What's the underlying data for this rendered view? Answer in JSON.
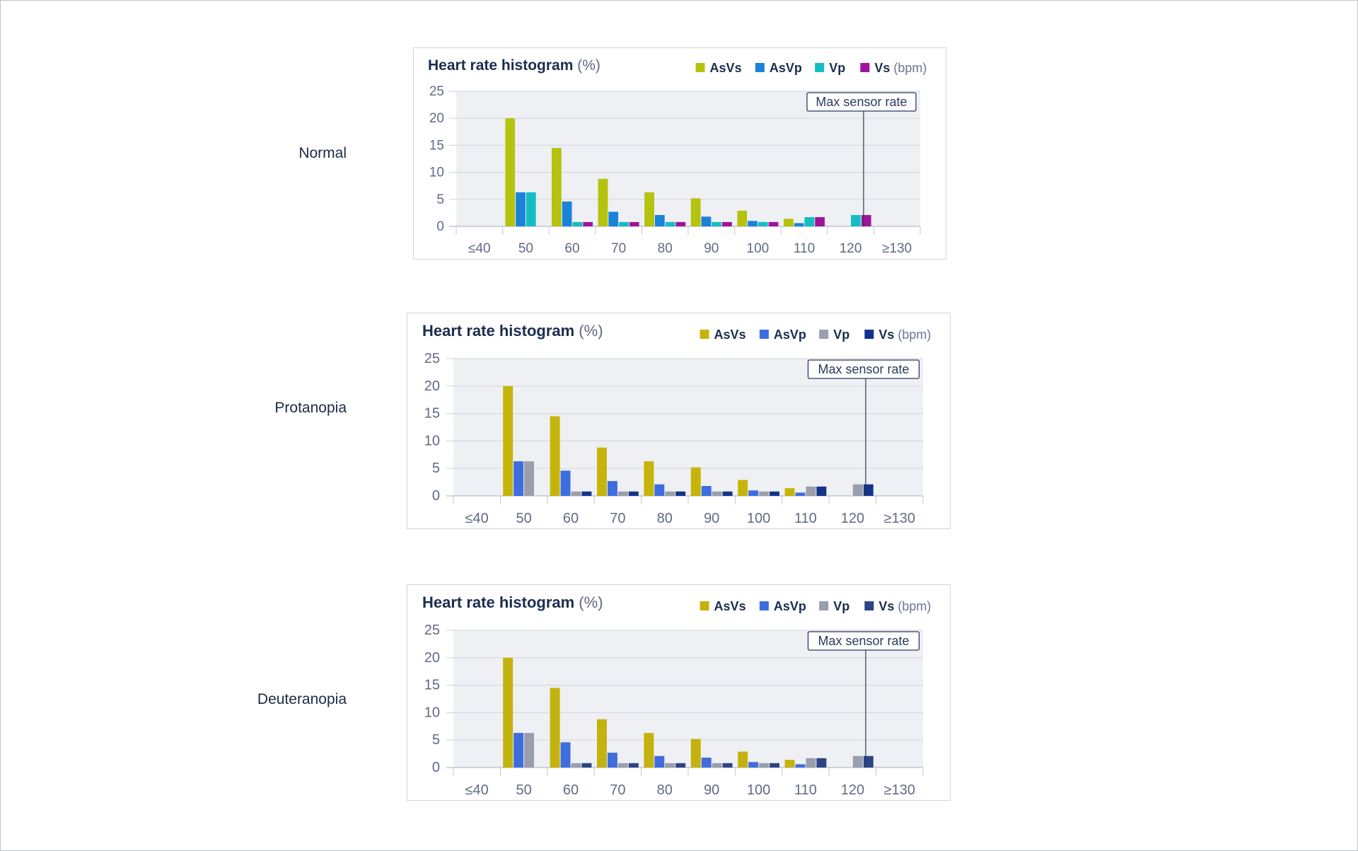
{
  "labels": [
    "Normal",
    "Protanopia",
    "Deuteranopia"
  ],
  "chart_data": [
    {
      "type": "bar",
      "title": "Heart rate histogram",
      "title_unit": "(%)",
      "categories": [
        "≤40",
        "50",
        "60",
        "70",
        "80",
        "90",
        "100",
        "110",
        "120",
        "≥130"
      ],
      "ylim": [
        0,
        25
      ],
      "yticks": [
        "0",
        "5",
        "10",
        "15",
        "20",
        "25"
      ],
      "grid": true,
      "legend_position": "top-right",
      "legend_suffix": "(bpm)",
      "annotation": {
        "text": "Max sensor rate",
        "x_category": "120"
      },
      "series": [
        {
          "name": "AsVs",
          "color": "#b5c20e",
          "values": [
            0,
            20,
            14.5,
            8.8,
            6.3,
            5.2,
            2.9,
            1.4,
            0,
            null
          ]
        },
        {
          "name": "AsVp",
          "color": "#1a83d9",
          "values": [
            null,
            6.3,
            4.6,
            2.7,
            2.1,
            1.8,
            1.0,
            0.6,
            null,
            null
          ]
        },
        {
          "name": "Vp",
          "color": "#13bdc2",
          "values": [
            null,
            6.3,
            0.8,
            0.8,
            0.8,
            0.8,
            0.8,
            1.7,
            2.1,
            null
          ]
        },
        {
          "name": "Vs",
          "color": "#a0149a",
          "values": [
            null,
            null,
            0.8,
            0.8,
            0.8,
            0.8,
            0.8,
            1.7,
            2.1,
            null
          ]
        }
      ]
    },
    {
      "type": "bar",
      "title": "Heart rate histogram",
      "title_unit": "(%)",
      "categories": [
        "≤40",
        "50",
        "60",
        "70",
        "80",
        "90",
        "100",
        "110",
        "120",
        "≥130"
      ],
      "ylim": [
        0,
        25
      ],
      "yticks": [
        "0",
        "5",
        "10",
        "15",
        "20",
        "25"
      ],
      "grid": true,
      "legend_position": "top-right",
      "legend_suffix": "(bpm)",
      "annotation": {
        "text": "Max sensor rate",
        "x_category": "120"
      },
      "series": [
        {
          "name": "AsVs",
          "color": "#c6b40a",
          "values": [
            0,
            20,
            14.5,
            8.8,
            6.3,
            5.2,
            2.9,
            1.4,
            0,
            null
          ]
        },
        {
          "name": "AsVp",
          "color": "#3d6ee0",
          "values": [
            null,
            6.3,
            4.6,
            2.7,
            2.1,
            1.8,
            1.0,
            0.6,
            null,
            null
          ]
        },
        {
          "name": "Vp",
          "color": "#9a9fab",
          "values": [
            null,
            6.3,
            0.8,
            0.8,
            0.8,
            0.8,
            0.8,
            1.7,
            2.1,
            null
          ]
        },
        {
          "name": "Vs",
          "color": "#13338a",
          "values": [
            null,
            null,
            0.8,
            0.8,
            0.8,
            0.8,
            0.8,
            1.7,
            2.1,
            null
          ]
        }
      ]
    },
    {
      "type": "bar",
      "title": "Heart rate histogram",
      "title_unit": "(%)",
      "categories": [
        "≤40",
        "50",
        "60",
        "70",
        "80",
        "90",
        "100",
        "110",
        "120",
        "≥130"
      ],
      "ylim": [
        0,
        25
      ],
      "yticks": [
        "0",
        "5",
        "10",
        "15",
        "20",
        "25"
      ],
      "grid": true,
      "legend_position": "top-right",
      "legend_suffix": "(bpm)",
      "annotation": {
        "text": "Max sensor rate",
        "x_category": "120"
      },
      "series": [
        {
          "name": "AsVs",
          "color": "#c4b20e",
          "values": [
            0,
            20,
            14.5,
            8.8,
            6.3,
            5.2,
            2.9,
            1.4,
            0,
            null
          ]
        },
        {
          "name": "AsVp",
          "color": "#3e6ddd",
          "values": [
            null,
            6.3,
            4.6,
            2.7,
            2.1,
            1.8,
            1.0,
            0.6,
            null,
            null
          ]
        },
        {
          "name": "Vp",
          "color": "#989eac",
          "values": [
            null,
            6.3,
            0.8,
            0.8,
            0.8,
            0.8,
            0.8,
            1.7,
            2.1,
            null
          ]
        },
        {
          "name": "Vs",
          "color": "#2d4384",
          "values": [
            null,
            null,
            0.8,
            0.8,
            0.8,
            0.8,
            0.8,
            1.7,
            2.1,
            null
          ]
        }
      ]
    }
  ]
}
